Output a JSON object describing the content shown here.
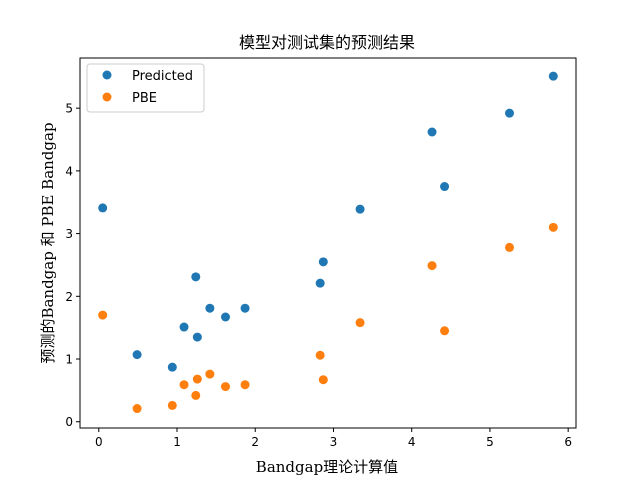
{
  "chart_data": {
    "type": "scatter",
    "title": "模型对测试集的预测结果",
    "xlabel": "Bandgap理论计算值",
    "ylabel": "预测的Bandgap 和 PBE Bandgap",
    "xlim": [
      -0.24,
      6.1
    ],
    "ylim": [
      -0.1,
      5.8
    ],
    "xticks": [
      0,
      1,
      2,
      3,
      4,
      5,
      6
    ],
    "yticks": [
      0,
      1,
      2,
      3,
      4,
      5
    ],
    "grid": false,
    "legend_position": "top-left",
    "series": [
      {
        "name": "Predicted",
        "color": "#1f77b4",
        "points": [
          {
            "x": 0.05,
            "y": 3.41
          },
          {
            "x": 0.49,
            "y": 1.07
          },
          {
            "x": 0.94,
            "y": 0.87
          },
          {
            "x": 1.09,
            "y": 1.51
          },
          {
            "x": 1.24,
            "y": 2.31
          },
          {
            "x": 1.26,
            "y": 1.35
          },
          {
            "x": 1.42,
            "y": 1.81
          },
          {
            "x": 1.62,
            "y": 1.67
          },
          {
            "x": 1.87,
            "y": 1.81
          },
          {
            "x": 2.83,
            "y": 2.21
          },
          {
            "x": 2.87,
            "y": 2.55
          },
          {
            "x": 3.34,
            "y": 3.39
          },
          {
            "x": 4.26,
            "y": 4.62
          },
          {
            "x": 4.42,
            "y": 3.75
          },
          {
            "x": 5.25,
            "y": 4.92
          },
          {
            "x": 5.81,
            "y": 5.51
          }
        ]
      },
      {
        "name": "PBE",
        "color": "#ff7f0e",
        "points": [
          {
            "x": 0.05,
            "y": 1.7
          },
          {
            "x": 0.49,
            "y": 0.21
          },
          {
            "x": 0.94,
            "y": 0.26
          },
          {
            "x": 1.09,
            "y": 0.59
          },
          {
            "x": 1.24,
            "y": 0.42
          },
          {
            "x": 1.26,
            "y": 0.68
          },
          {
            "x": 1.42,
            "y": 0.76
          },
          {
            "x": 1.62,
            "y": 0.56
          },
          {
            "x": 1.87,
            "y": 0.59
          },
          {
            "x": 2.83,
            "y": 1.06
          },
          {
            "x": 2.87,
            "y": 0.67
          },
          {
            "x": 3.34,
            "y": 1.58
          },
          {
            "x": 4.26,
            "y": 2.49
          },
          {
            "x": 4.42,
            "y": 1.45
          },
          {
            "x": 5.25,
            "y": 2.78
          },
          {
            "x": 5.81,
            "y": 3.1
          }
        ]
      }
    ]
  }
}
